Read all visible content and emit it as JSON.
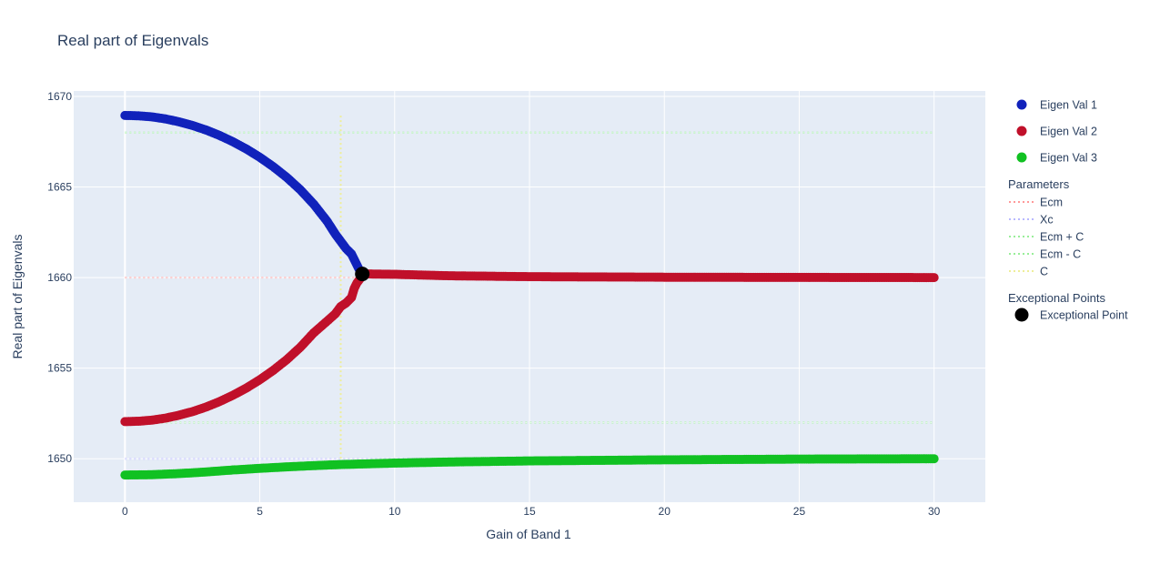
{
  "chart_data": {
    "type": "scatter",
    "title": "Real part of Eigenvals",
    "xlabel": "Gain of Band 1",
    "ylabel": "Real part of Eigenvals",
    "xlim": [
      -1.9,
      31.9
    ],
    "ylim": [
      1647.6,
      1670.3
    ],
    "x_ticks": [
      0,
      5,
      10,
      15,
      20,
      25,
      30
    ],
    "y_ticks": [
      1650,
      1655,
      1660,
      1665,
      1670
    ],
    "grid": true,
    "legend_position": "right",
    "series": [
      {
        "name": "Eigen Val 1",
        "color": "#1122bb",
        "points": [
          [
            0,
            1668.95
          ],
          [
            0.5,
            1668.93
          ],
          [
            1,
            1668.87
          ],
          [
            1.5,
            1668.76
          ],
          [
            2,
            1668.6
          ],
          [
            2.5,
            1668.4
          ],
          [
            3,
            1668.15
          ],
          [
            3.5,
            1667.85
          ],
          [
            4,
            1667.5
          ],
          [
            4.5,
            1667.1
          ],
          [
            5,
            1666.64
          ],
          [
            5.5,
            1666.12
          ],
          [
            6,
            1665.53
          ],
          [
            6.5,
            1664.85
          ],
          [
            7,
            1664.05
          ],
          [
            7.5,
            1663.1
          ],
          [
            7.8,
            1662.4
          ],
          [
            8,
            1662.0
          ],
          [
            8.2,
            1661.6
          ],
          [
            8.4,
            1661.3
          ],
          [
            8.5,
            1661.0
          ],
          [
            8.6,
            1660.7
          ],
          [
            8.7,
            1660.4
          ],
          [
            8.8,
            1660.15
          ]
        ]
      },
      {
        "name": "Eigen Val 2",
        "color": "#c0102a",
        "points": [
          [
            0,
            1652.05
          ],
          [
            0.5,
            1652.07
          ],
          [
            1,
            1652.13
          ],
          [
            1.5,
            1652.24
          ],
          [
            2,
            1652.4
          ],
          [
            2.5,
            1652.6
          ],
          [
            3,
            1652.85
          ],
          [
            3.5,
            1653.15
          ],
          [
            4,
            1653.5
          ],
          [
            4.5,
            1653.9
          ],
          [
            5,
            1654.36
          ],
          [
            5.5,
            1654.88
          ],
          [
            6,
            1655.47
          ],
          [
            6.5,
            1656.15
          ],
          [
            7,
            1656.95
          ],
          [
            7.5,
            1657.6
          ],
          [
            7.8,
            1658.0
          ],
          [
            8,
            1658.4
          ],
          [
            8.2,
            1658.6
          ],
          [
            8.4,
            1658.9
          ],
          [
            8.5,
            1659.4
          ],
          [
            8.6,
            1659.7
          ],
          [
            8.8,
            1660.1
          ],
          [
            9,
            1660.2
          ],
          [
            10,
            1660.18
          ],
          [
            12,
            1660.1
          ],
          [
            15,
            1660.05
          ],
          [
            20,
            1660.02
          ],
          [
            25,
            1660.01
          ],
          [
            30,
            1660.0
          ]
        ]
      },
      {
        "name": "Eigen Val 3",
        "color": "#11c122",
        "points": [
          [
            0,
            1649.1
          ],
          [
            1,
            1649.12
          ],
          [
            2,
            1649.18
          ],
          [
            3,
            1649.27
          ],
          [
            4,
            1649.38
          ],
          [
            5,
            1649.47
          ],
          [
            6,
            1649.55
          ],
          [
            7,
            1649.62
          ],
          [
            8,
            1649.68
          ],
          [
            9,
            1649.72
          ],
          [
            10,
            1649.76
          ],
          [
            12,
            1649.82
          ],
          [
            15,
            1649.88
          ],
          [
            20,
            1649.94
          ],
          [
            25,
            1649.98
          ],
          [
            30,
            1650.0
          ]
        ]
      }
    ],
    "parameters_legend_title": "Parameters",
    "parameters": [
      {
        "name": "Ecm",
        "color": "#ff9999",
        "type": "hline",
        "y": 1660,
        "x_range": [
          0,
          30
        ]
      },
      {
        "name": "Xc",
        "color": "#b8b8ff",
        "type": "hline",
        "y": 1650,
        "x_range": [
          0,
          30
        ]
      },
      {
        "name": "Ecm + C",
        "color": "#99ee99",
        "type": "hline",
        "y": 1668,
        "x_range": [
          0,
          30
        ]
      },
      {
        "name": "Ecm - C",
        "color": "#99ee99",
        "type": "hline",
        "y": 1652,
        "x_range": [
          0,
          30
        ]
      },
      {
        "name": "C",
        "color": "#eeee99",
        "type": "vline",
        "x": 8,
        "y_range": [
          1649.5,
          1669
        ]
      }
    ],
    "exceptional_legend_title": "Exceptional Points",
    "exceptional_points": [
      {
        "name": "Exceptional Point",
        "color": "#000000",
        "x": 8.8,
        "y": 1660.2
      }
    ]
  }
}
